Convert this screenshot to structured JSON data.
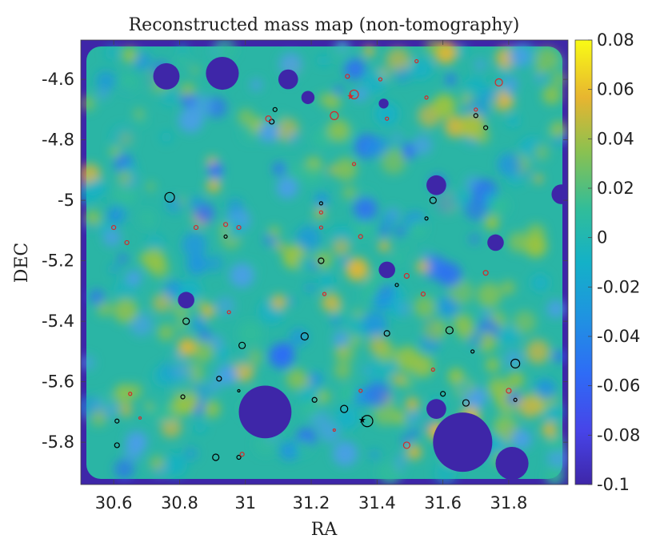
{
  "chart_data": {
    "type": "heatmap",
    "title": "Reconstructed mass map (non-tomography)",
    "xlabel": "RA",
    "ylabel": "DEC",
    "xlim": [
      30.5,
      31.98
    ],
    "ylim": [
      -5.94,
      -4.47
    ],
    "y_reversed": true,
    "x_ticks": [
      30.6,
      30.8,
      31,
      31.2,
      31.4,
      31.6,
      31.8
    ],
    "x_tick_labels": [
      "30.6",
      "30.8",
      "31",
      "31.2",
      "31.4",
      "31.6",
      "31.8"
    ],
    "y_ticks": [
      -4.6,
      -4.8,
      -5,
      -5.2,
      -5.4,
      -5.6,
      -5.8
    ],
    "y_tick_labels": [
      "-4.6",
      "-4.8",
      "-5",
      "-5.2",
      "-5.4",
      "-5.6",
      "-5.8"
    ],
    "colorbar": {
      "colormap": "parula",
      "range": [
        -0.1,
        0.08
      ],
      "ticks": [
        0.08,
        0.06,
        0.04,
        0.02,
        0,
        -0.02,
        -0.04,
        -0.06,
        -0.08,
        -0.1
      ],
      "tick_labels": [
        "0.08",
        "0.06",
        "0.04",
        "0.02",
        "0",
        "-0.02",
        "-0.04",
        "-0.06",
        "-0.08",
        "-0.1"
      ]
    },
    "colors": {
      "low": "#3e26a8",
      "mid": "#2ab5a5",
      "high": "#f9fb15",
      "black_markers": "#000000",
      "red_markers": "#d62728"
    },
    "masked_regions": [
      {
        "ra": 30.76,
        "dec": -4.59,
        "r": 0.04
      },
      {
        "ra": 30.93,
        "dec": -4.58,
        "r": 0.05
      },
      {
        "ra": 31.13,
        "dec": -4.6,
        "r": 0.03
      },
      {
        "ra": 31.19,
        "dec": -4.66,
        "r": 0.02
      },
      {
        "ra": 31.42,
        "dec": -4.68,
        "r": 0.015
      },
      {
        "ra": 31.58,
        "dec": -4.95,
        "r": 0.03
      },
      {
        "ra": 31.96,
        "dec": -4.98,
        "r": 0.03
      },
      {
        "ra": 31.76,
        "dec": -5.14,
        "r": 0.025
      },
      {
        "ra": 30.82,
        "dec": -5.33,
        "r": 0.025
      },
      {
        "ra": 31.43,
        "dec": -5.23,
        "r": 0.025
      },
      {
        "ra": 31.06,
        "dec": -5.7,
        "r": 0.08
      },
      {
        "ra": 31.58,
        "dec": -5.69,
        "r": 0.03
      },
      {
        "ra": 31.66,
        "dec": -5.8,
        "r": 0.09
      },
      {
        "ra": 31.81,
        "dec": -5.87,
        "r": 0.05
      }
    ],
    "clusters_black": [
      {
        "ra": 30.77,
        "dec": -4.99,
        "size": 6
      },
      {
        "ra": 31.09,
        "dec": -4.7,
        "size": 2.5
      },
      {
        "ra": 31.08,
        "dec": -4.74,
        "size": 3
      },
      {
        "ra": 31.7,
        "dec": -4.72,
        "size": 2.5
      },
      {
        "ra": 31.73,
        "dec": -4.76,
        "size": 2.5
      },
      {
        "ra": 31.23,
        "dec": -5.01,
        "size": 2
      },
      {
        "ra": 31.57,
        "dec": -5.0,
        "size": 4
      },
      {
        "ra": 31.55,
        "dec": -5.06,
        "size": 2
      },
      {
        "ra": 30.94,
        "dec": -5.12,
        "size": 2
      },
      {
        "ra": 31.23,
        "dec": -5.2,
        "size": 3.5
      },
      {
        "ra": 31.46,
        "dec": -5.28,
        "size": 2
      },
      {
        "ra": 30.82,
        "dec": -5.4,
        "size": 4
      },
      {
        "ra": 31.18,
        "dec": -5.45,
        "size": 4.5
      },
      {
        "ra": 31.43,
        "dec": -5.44,
        "size": 3.5
      },
      {
        "ra": 31.62,
        "dec": -5.43,
        "size": 4.5
      },
      {
        "ra": 30.99,
        "dec": -5.48,
        "size": 4
      },
      {
        "ra": 31.69,
        "dec": -5.5,
        "size": 2
      },
      {
        "ra": 31.82,
        "dec": -5.54,
        "size": 5.5
      },
      {
        "ra": 30.92,
        "dec": -5.59,
        "size": 3
      },
      {
        "ra": 30.98,
        "dec": -5.63,
        "size": 1.5
      },
      {
        "ra": 30.81,
        "dec": -5.65,
        "size": 2.5
      },
      {
        "ra": 31.21,
        "dec": -5.66,
        "size": 3
      },
      {
        "ra": 31.6,
        "dec": -5.64,
        "size": 3
      },
      {
        "ra": 31.67,
        "dec": -5.67,
        "size": 4
      },
      {
        "ra": 31.82,
        "dec": -5.66,
        "size": 2
      },
      {
        "ra": 31.3,
        "dec": -5.69,
        "size": 4.5
      },
      {
        "ra": 31.37,
        "dec": -5.73,
        "size": 7
      },
      {
        "ra": 30.61,
        "dec": -5.73,
        "size": 2.5
      },
      {
        "ra": 30.61,
        "dec": -5.81,
        "size": 3
      },
      {
        "ra": 30.91,
        "dec": -5.85,
        "size": 4
      },
      {
        "ra": 30.98,
        "dec": -5.85,
        "size": 2.5
      }
    ],
    "clusters_red": [
      {
        "ra": 31.31,
        "dec": -4.59,
        "size": 2.5
      },
      {
        "ra": 31.41,
        "dec": -4.6,
        "size": 2
      },
      {
        "ra": 31.52,
        "dec": -4.54,
        "size": 2
      },
      {
        "ra": 31.77,
        "dec": -4.61,
        "size": 4.5
      },
      {
        "ra": 31.33,
        "dec": -4.65,
        "size": 5.5
      },
      {
        "ra": 31.55,
        "dec": -4.66,
        "size": 2
      },
      {
        "ra": 31.27,
        "dec": -4.72,
        "size": 5
      },
      {
        "ra": 31.07,
        "dec": -4.73,
        "size": 3.5
      },
      {
        "ra": 31.43,
        "dec": -4.73,
        "size": 2
      },
      {
        "ra": 31.7,
        "dec": -4.7,
        "size": 2
      },
      {
        "ra": 31.33,
        "dec": -4.88,
        "size": 2
      },
      {
        "ra": 31.23,
        "dec": -5.04,
        "size": 2
      },
      {
        "ra": 30.6,
        "dec": -5.09,
        "size": 2.5
      },
      {
        "ra": 30.64,
        "dec": -5.14,
        "size": 2.5
      },
      {
        "ra": 30.85,
        "dec": -5.09,
        "size": 2.5
      },
      {
        "ra": 30.94,
        "dec": -5.08,
        "size": 2.5
      },
      {
        "ra": 30.98,
        "dec": -5.09,
        "size": 2.5
      },
      {
        "ra": 31.23,
        "dec": -5.09,
        "size": 2
      },
      {
        "ra": 31.35,
        "dec": -5.12,
        "size": 2.5
      },
      {
        "ra": 31.49,
        "dec": -5.25,
        "size": 3
      },
      {
        "ra": 31.73,
        "dec": -5.24,
        "size": 3
      },
      {
        "ra": 31.24,
        "dec": -5.31,
        "size": 2
      },
      {
        "ra": 31.54,
        "dec": -5.31,
        "size": 2.5
      },
      {
        "ra": 30.95,
        "dec": -5.37,
        "size": 2
      },
      {
        "ra": 31.57,
        "dec": -5.56,
        "size": 2
      },
      {
        "ra": 31.35,
        "dec": -5.63,
        "size": 2
      },
      {
        "ra": 31.8,
        "dec": -5.63,
        "size": 3
      },
      {
        "ra": 30.65,
        "dec": -5.64,
        "size": 2
      },
      {
        "ra": 30.68,
        "dec": -5.72,
        "size": 1.5
      },
      {
        "ra": 31.27,
        "dec": -5.76,
        "size": 1.5
      },
      {
        "ra": 31.49,
        "dec": -5.81,
        "size": 4
      },
      {
        "ra": 30.99,
        "dec": -5.84,
        "size": 2.5
      }
    ],
    "star_markers": [
      {
        "ra": 31.32,
        "dec": -4.655,
        "color": "red"
      },
      {
        "ra": 31.355,
        "dec": -5.725,
        "color": "black"
      }
    ]
  }
}
